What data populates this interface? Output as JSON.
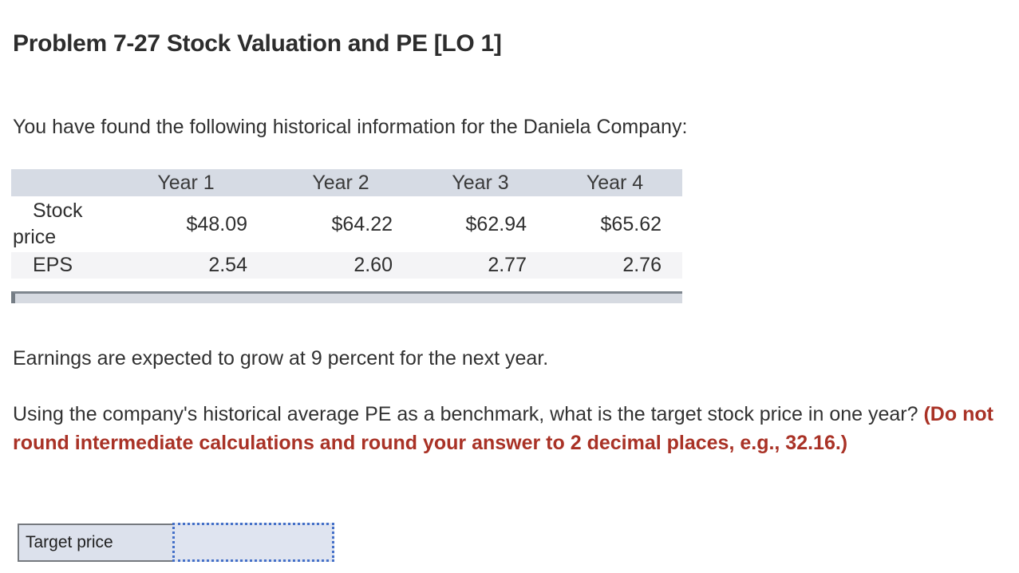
{
  "header": {
    "title": "Problem 7-27 Stock Valuation and PE [LO 1]"
  },
  "intro_text": "You have found the following historical information for the Daniela Company:",
  "table": {
    "headers": [
      "",
      "Year 1",
      "Year 2",
      "Year 3",
      "Year 4"
    ],
    "rows": [
      {
        "label": "Stock price",
        "values": [
          "$48.09",
          "$64.22",
          "$62.94",
          "$65.62"
        ]
      },
      {
        "label": "EPS",
        "values": [
          "2.54",
          "2.60",
          "2.77",
          "2.76"
        ]
      }
    ]
  },
  "growth_text": "Earnings are expected to grow at 9 percent for the next year.",
  "question": {
    "normal": "Using the company's historical average PE as a benchmark, what is the target stock price in one year? ",
    "emphasis": "(Do not round intermediate calculations and round your answer to 2 decimal places, e.g., 32.16.)"
  },
  "answer": {
    "label": "Target price",
    "value": ""
  },
  "colors": {
    "emphasis_red": "#a93226",
    "table_header_bg": "#d6dbe4",
    "eps_row_bg": "#f4f4f6",
    "scrollbar_track": "#d6dae1",
    "answer_label_bg": "#dce1ec",
    "answer_input_bg": "#dfe4f0",
    "answer_border_gray": "#75797e",
    "dotted_border_blue": "#4470c8",
    "body_text": "#313131"
  }
}
